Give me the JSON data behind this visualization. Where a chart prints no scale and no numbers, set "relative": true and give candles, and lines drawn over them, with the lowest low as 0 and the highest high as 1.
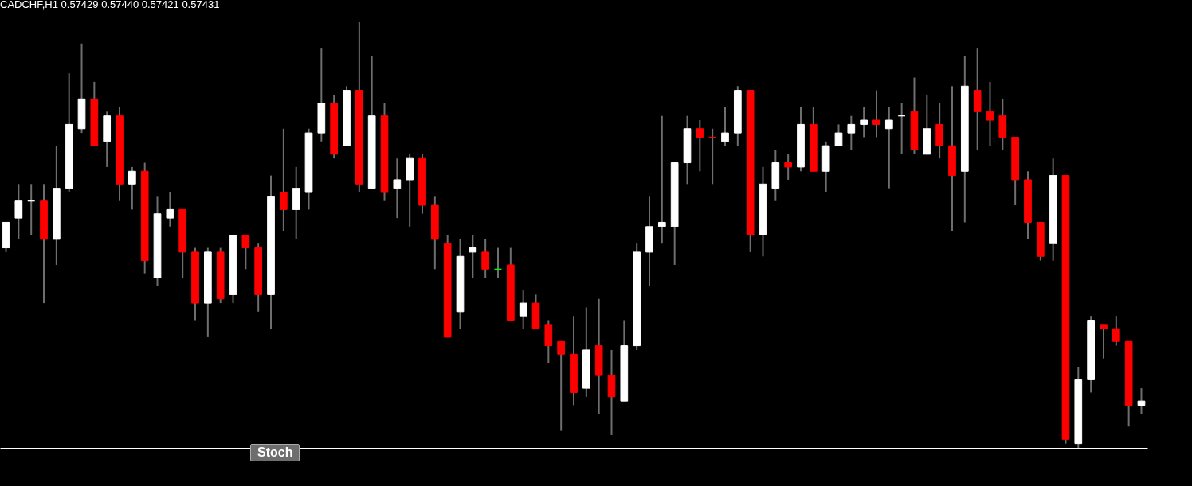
{
  "chart_data": {
    "type": "candlestick",
    "title": "CADCHF,H1  0.57429 0.57440 0.57421 0.57431",
    "relative": true,
    "annotations": [
      "Stoch"
    ],
    "categories": [
      null,
      null,
      null,
      null,
      null,
      null,
      null,
      null,
      null,
      null,
      null,
      null,
      null,
      null,
      null,
      null,
      null,
      null,
      null,
      null,
      null,
      null,
      null,
      null,
      null,
      null,
      null,
      null,
      null,
      null,
      null,
      null,
      null,
      null,
      null,
      null,
      null,
      null,
      null,
      null,
      null,
      null,
      null,
      null,
      null,
      null,
      null,
      null,
      null,
      null,
      null,
      null,
      null,
      null,
      null,
      null,
      null,
      null,
      null,
      null,
      null,
      null,
      null,
      null,
      null,
      null,
      null,
      null,
      null,
      null,
      null,
      null,
      null,
      null,
      null,
      null,
      null,
      null,
      null,
      null,
      null,
      null,
      null,
      null,
      null,
      null,
      null,
      null,
      null,
      null,
      null
    ],
    "ohlc": [
      [
        0.47,
        0.53,
        0.46,
        0.53
      ],
      [
        0.54,
        0.62,
        0.49,
        0.58
      ],
      [
        0.58,
        0.62,
        0.5,
        0.58
      ],
      [
        0.58,
        0.62,
        0.34,
        0.49
      ],
      [
        0.49,
        0.71,
        0.43,
        0.61
      ],
      [
        0.61,
        0.88,
        0.6,
        0.76
      ],
      [
        0.75,
        0.95,
        0.74,
        0.82
      ],
      [
        0.82,
        0.86,
        0.71,
        0.71
      ],
      [
        0.72,
        0.79,
        0.66,
        0.78
      ],
      [
        0.78,
        0.8,
        0.58,
        0.62
      ],
      [
        0.62,
        0.66,
        0.56,
        0.65
      ],
      [
        0.65,
        0.67,
        0.41,
        0.44
      ],
      [
        0.4,
        0.59,
        0.38,
        0.55
      ],
      [
        0.54,
        0.6,
        0.52,
        0.56
      ],
      [
        0.56,
        0.56,
        0.4,
        0.46
      ],
      [
        0.46,
        0.47,
        0.3,
        0.34
      ],
      [
        0.34,
        0.47,
        0.26,
        0.46
      ],
      [
        0.46,
        0.47,
        0.34,
        0.35
      ],
      [
        0.36,
        0.5,
        0.34,
        0.5
      ],
      [
        0.5,
        0.5,
        0.42,
        0.47
      ],
      [
        0.47,
        0.48,
        0.32,
        0.36
      ],
      [
        0.36,
        0.64,
        0.28,
        0.59
      ],
      [
        0.6,
        0.75,
        0.51,
        0.56
      ],
      [
        0.56,
        0.66,
        0.49,
        0.61
      ],
      [
        0.6,
        0.75,
        0.56,
        0.74
      ],
      [
        0.74,
        0.94,
        0.72,
        0.81
      ],
      [
        0.81,
        0.83,
        0.68,
        0.69
      ],
      [
        0.71,
        0.85,
        0.71,
        0.84
      ],
      [
        0.84,
        1,
        0.6,
        0.62
      ],
      [
        0.61,
        0.92,
        0.61,
        0.78
      ],
      [
        0.78,
        0.81,
        0.58,
        0.6
      ],
      [
        0.61,
        0.68,
        0.54,
        0.63
      ],
      [
        0.63,
        0.69,
        0.52,
        0.68
      ],
      [
        0.68,
        0.69,
        0.55,
        0.57
      ],
      [
        0.57,
        0.59,
        0.42,
        0.49
      ],
      [
        0.48,
        0.5,
        0.26,
        0.26
      ],
      [
        0.32,
        0.49,
        0.28,
        0.45
      ],
      [
        0.46,
        0.5,
        0.4,
        0.47
      ],
      [
        0.46,
        0.49,
        0.4,
        0.42
      ],
      [
        0.42,
        0.47,
        0.4,
        0.42
      ],
      [
        0.43,
        0.47,
        0.3,
        0.3
      ],
      [
        0.31,
        0.37,
        0.28,
        0.34
      ],
      [
        0.34,
        0.36,
        0.28,
        0.28
      ],
      [
        0.29,
        0.3,
        0.2,
        0.24
      ],
      [
        0.25,
        0.25,
        0.04,
        0.22
      ],
      [
        0.22,
        0.31,
        0.1,
        0.13
      ],
      [
        0.14,
        0.33,
        0.12,
        0.23
      ],
      [
        0.24,
        0.35,
        0.08,
        0.17
      ],
      [
        0.17,
        0.23,
        0.03,
        0.12
      ],
      [
        0.11,
        0.3,
        0.11,
        0.24
      ],
      [
        0.24,
        0.48,
        0.23,
        0.46
      ],
      [
        0.46,
        0.59,
        0.38,
        0.52
      ],
      [
        0.52,
        0.78,
        0.48,
        0.53
      ],
      [
        0.52,
        0.67,
        0.43,
        0.67
      ],
      [
        0.67,
        0.78,
        0.62,
        0.75
      ],
      [
        0.75,
        0.77,
        0.65,
        0.73
      ],
      [
        0.73,
        0.75,
        0.62,
        0.73
      ],
      [
        0.72,
        0.8,
        0.71,
        0.74
      ],
      [
        0.74,
        0.85,
        0.71,
        0.84
      ],
      [
        0.84,
        0.84,
        0.46,
        0.5
      ],
      [
        0.5,
        0.66,
        0.45,
        0.62
      ],
      [
        0.61,
        0.7,
        0.58,
        0.67
      ],
      [
        0.67,
        0.69,
        0.63,
        0.66
      ],
      [
        0.66,
        0.8,
        0.65,
        0.76
      ],
      [
        0.76,
        0.8,
        0.65,
        0.65
      ],
      [
        0.65,
        0.72,
        0.6,
        0.71
      ],
      [
        0.71,
        0.76,
        0.71,
        0.74
      ],
      [
        0.74,
        0.78,
        0.7,
        0.76
      ],
      [
        0.76,
        0.8,
        0.73,
        0.77
      ],
      [
        0.77,
        0.84,
        0.73,
        0.76
      ],
      [
        0.75,
        0.8,
        0.61,
        0.77
      ],
      [
        0.78,
        0.81,
        0.69,
        0.78
      ],
      [
        0.79,
        0.87,
        0.69,
        0.7
      ],
      [
        0.69,
        0.83,
        0.69,
        0.75
      ],
      [
        0.76,
        0.81,
        0.68,
        0.71
      ],
      [
        0.71,
        0.85,
        0.51,
        0.64
      ],
      [
        0.65,
        0.92,
        0.53,
        0.85
      ],
      [
        0.84,
        0.94,
        0.7,
        0.79
      ],
      [
        0.79,
        0.86,
        0.71,
        0.77
      ],
      [
        0.78,
        0.82,
        0.7,
        0.73
      ],
      [
        0.73,
        0.73,
        0.57,
        0.63
      ],
      [
        0.63,
        0.65,
        0.49,
        0.53
      ],
      [
        0.53,
        0.53,
        0.44,
        0.45
      ],
      [
        0.48,
        0.68,
        0.44,
        0.64
      ],
      [
        0.64,
        0.64,
        0.01,
        0.02
      ],
      [
        0.01,
        0.19,
        0,
        0.16
      ],
      [
        0.16,
        0.31,
        0.13,
        0.3
      ],
      [
        0.29,
        0.29,
        0.21,
        0.28
      ],
      [
        0.28,
        0.31,
        0.24,
        0.25
      ],
      [
        0.25,
        0.25,
        0.05,
        0.1
      ],
      [
        0.1,
        0.14,
        0.08,
        0.11
      ]
    ],
    "colors": [
      "#ffffff",
      "#ffffff",
      "#ffffff",
      "#ff0000",
      "#ffffff",
      "#ffffff",
      "#ffffff",
      "#ff0000",
      "#ffffff",
      "#ff0000",
      "#ffffff",
      "#ff0000",
      "#ffffff",
      "#ffffff",
      "#ff0000",
      "#ff0000",
      "#ffffff",
      "#ff0000",
      "#ffffff",
      "#ff0000",
      "#ff0000",
      "#ffffff",
      "#ff0000",
      "#ffffff",
      "#ffffff",
      "#ffffff",
      "#ff0000",
      "#ffffff",
      "#ff0000",
      "#ffffff",
      "#ff0000",
      "#ffffff",
      "#ffffff",
      "#ff0000",
      "#ff0000",
      "#ff0000",
      "#ffffff",
      "#ffffff",
      "#ff0000",
      "#00ff00",
      "#ff0000",
      "#ffffff",
      "#ff0000",
      "#ff0000",
      "#ff0000",
      "#ff0000",
      "#ffffff",
      "#ff0000",
      "#ff0000",
      "#ffffff",
      "#ffffff",
      "#ffffff",
      "#ffffff",
      "#ffffff",
      "#ffffff",
      "#ff0000",
      "#ff0000",
      "#ffffff",
      "#ffffff",
      "#ff0000",
      "#ffffff",
      "#ffffff",
      "#ff0000",
      "#ffffff",
      "#ff0000",
      "#ffffff",
      "#ffffff",
      "#ffffff",
      "#ffffff",
      "#ff0000",
      "#ffffff",
      "#ffffff",
      "#ff0000",
      "#ffffff",
      "#ff0000",
      "#ff0000",
      "#ffffff",
      "#ff0000",
      "#ff0000",
      "#ff0000",
      "#ff0000",
      "#ff0000",
      "#ff0000",
      "#ffffff",
      "#ff0000",
      "#ffffff",
      "#ffffff",
      "#ff0000",
      "#ff0000",
      "#ff0000",
      "#ffffff"
    ]
  }
}
